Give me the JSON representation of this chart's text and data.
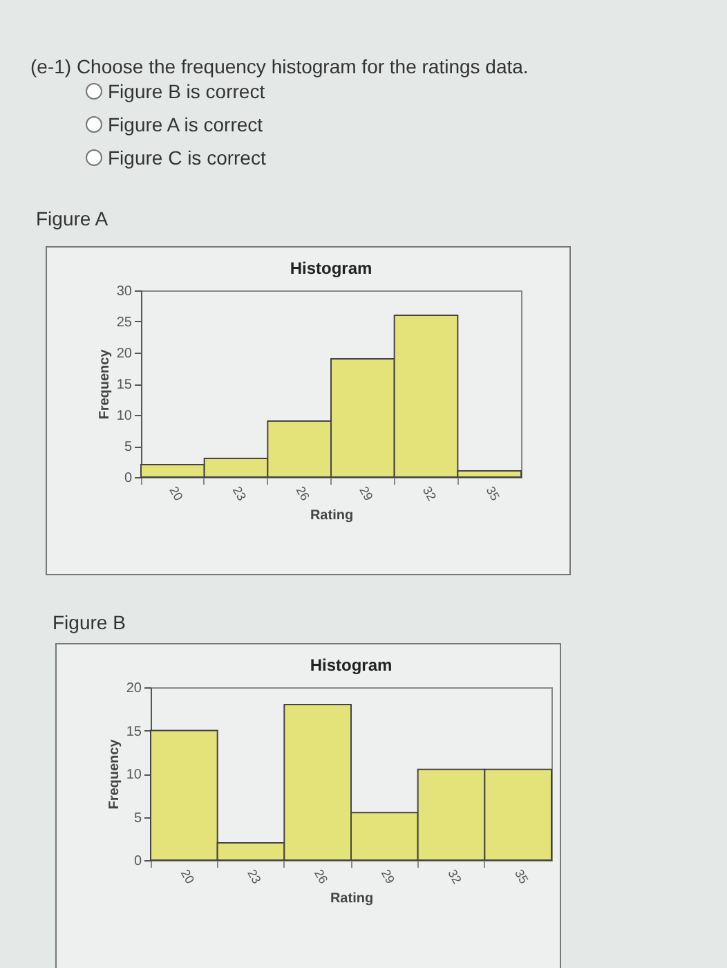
{
  "chart_data": [
    {
      "type": "bar",
      "title": "Histogram",
      "xlabel": "Rating",
      "ylabel": "Frequency",
      "annotations": [
        "(e-1) Choose the frequency histogram for the ratings data.",
        "Figure B is correct",
        "Figure A is correct",
        "Figure C is correct",
        "Figure A"
      ],
      "categories": [
        "20",
        "23",
        "26",
        "29",
        "32",
        "35"
      ],
      "values": [
        2,
        3,
        9,
        19,
        26,
        1
      ],
      "color": "#e3e37a",
      "ylim": [
        0,
        30
      ],
      "yticks": [
        0,
        5,
        10,
        15,
        20,
        25,
        30
      ],
      "grid": false
    },
    {
      "type": "bar",
      "title": "Histogram",
      "xlabel": "Rating",
      "ylabel": "Frequency",
      "annotations": [
        "Figure B"
      ],
      "categories": [
        "20",
        "23",
        "26",
        "29",
        "32",
        "35"
      ],
      "values": [
        15,
        2,
        18,
        5.5,
        10.5,
        10.5
      ],
      "color": "#e3e37a",
      "ylim": [
        0,
        20
      ],
      "yticks": [
        0,
        5,
        10,
        15,
        20
      ],
      "grid": false
    }
  ]
}
